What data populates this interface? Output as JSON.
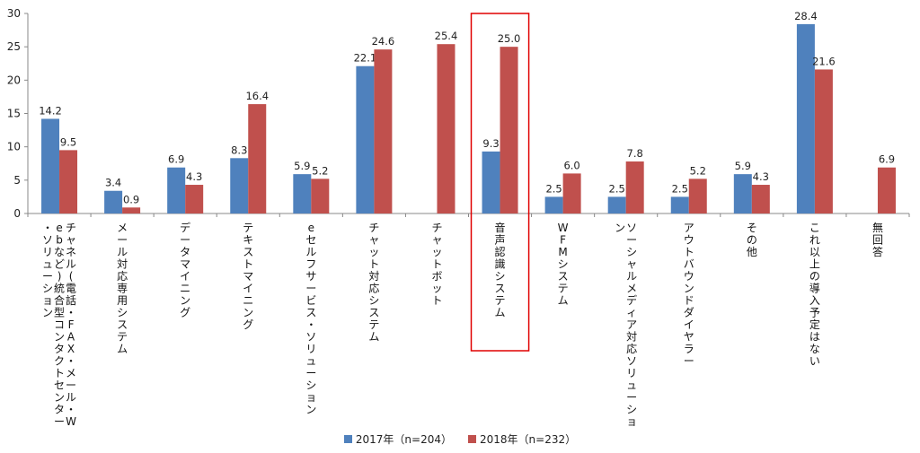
{
  "chart_data": {
    "type": "bar",
    "title": "",
    "xlabel": "",
    "ylabel": "",
    "ylim": [
      0,
      30
    ],
    "yticks": [
      0,
      5,
      10,
      15,
      20,
      25,
      30
    ],
    "grid": false,
    "legend_position": "bottom",
    "categories": [
      "チャネル(電話・FAX・メール・Webなど)統合型コンタクトセンター・ソリューション",
      "メール対応専用システム",
      "データマイニング",
      "テキストマイニング",
      "eセルフサービス・ソリューション",
      "チャット対応システム",
      "チャットボット",
      "音声認識システム",
      "WFMシステム",
      "ソーシャルメディア対応ソリューション",
      "アウトバウンドダイヤラー",
      "その他",
      "これ以上の導入予定はない",
      "無回答"
    ],
    "series": [
      {
        "name": "2017年（n=204）",
        "color": "#4f81bd",
        "values": [
          14.2,
          3.4,
          6.9,
          8.3,
          5.9,
          22.1,
          null,
          9.3,
          2.5,
          2.5,
          2.5,
          5.9,
          28.4,
          null
        ]
      },
      {
        "name": "2018年（n=232）",
        "color": "#c0504d",
        "values": [
          9.5,
          0.9,
          4.3,
          16.4,
          5.2,
          24.6,
          25.4,
          25.0,
          6.0,
          7.8,
          5.2,
          4.3,
          21.6,
          6.9
        ]
      }
    ],
    "highlight_category_index": 7,
    "highlight_color": "#e00000"
  }
}
